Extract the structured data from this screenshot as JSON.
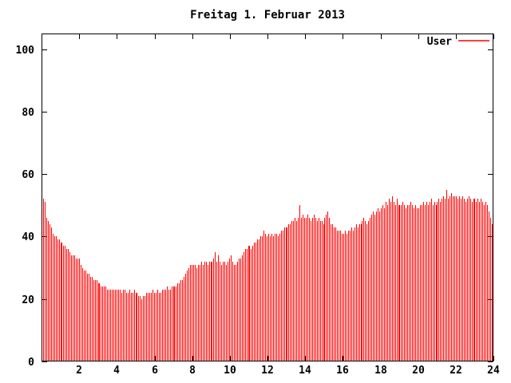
{
  "window": {
    "kind": "gnuplot-chart-image"
  },
  "legend": {
    "position": "top-right"
  },
  "chart_data": {
    "type": "bar",
    "subtype": "impulses",
    "title": "Freitag 1. Februar 2013",
    "xlabel": "",
    "ylabel": "",
    "x_unit": "hour_of_day",
    "sample_interval_minutes": 5,
    "xlim": [
      0,
      24
    ],
    "ylim": [
      0,
      105
    ],
    "xticks": [
      2,
      4,
      6,
      8,
      10,
      12,
      14,
      16,
      18,
      20,
      22,
      24
    ],
    "yticks": [
      0,
      20,
      40,
      60,
      80,
      100
    ],
    "grid": false,
    "legend_position": "top-right",
    "axis_color": "#000000",
    "background_color": "#ffffff",
    "series": [
      {
        "name": "User",
        "color": "#ff0000",
        "values": [
          52,
          51,
          46,
          45,
          44,
          43,
          41,
          40,
          40,
          39,
          39,
          38,
          38,
          37,
          37,
          36,
          36,
          35,
          34,
          34,
          34,
          33,
          33,
          33,
          31,
          30,
          29,
          29,
          28,
          28,
          27,
          27,
          26,
          26,
          26,
          25,
          25,
          24,
          24,
          24,
          24,
          23,
          23,
          23,
          23,
          23,
          23,
          23,
          23,
          23,
          22,
          23,
          23,
          22,
          22,
          23,
          22,
          22,
          23,
          22,
          22,
          21,
          21,
          20,
          21,
          21,
          22,
          22,
          22,
          22,
          23,
          22,
          22,
          23,
          22,
          22,
          23,
          23,
          23,
          24,
          23,
          23,
          24,
          24,
          24,
          24,
          25,
          25,
          26,
          26,
          27,
          28,
          29,
          30,
          31,
          31,
          31,
          31,
          30,
          31,
          31,
          32,
          31,
          32,
          32,
          31,
          32,
          32,
          32,
          33,
          35,
          32,
          34,
          32,
          31,
          32,
          32,
          31,
          32,
          33,
          34,
          32,
          31,
          31,
          32,
          33,
          33,
          34,
          35,
          36,
          36,
          37,
          37,
          36,
          37,
          38,
          38,
          39,
          39,
          40,
          40,
          42,
          41,
          40,
          41,
          40,
          41,
          40,
          41,
          41,
          40,
          41,
          42,
          42,
          43,
          43,
          43,
          44,
          44,
          45,
          45,
          46,
          45,
          46,
          50,
          46,
          47,
          46,
          46,
          47,
          46,
          45,
          46,
          47,
          46,
          45,
          46,
          45,
          45,
          44,
          46,
          47,
          48,
          46,
          44,
          44,
          43,
          43,
          42,
          42,
          42,
          41,
          41,
          42,
          41,
          42,
          42,
          43,
          42,
          43,
          44,
          43,
          44,
          44,
          45,
          46,
          45,
          44,
          45,
          46,
          47,
          48,
          47,
          48,
          49,
          48,
          49,
          50,
          49,
          51,
          50,
          52,
          51,
          53,
          51,
          50,
          52,
          50,
          50,
          50,
          51,
          50,
          49,
          50,
          50,
          51,
          50,
          49,
          50,
          49,
          49,
          50,
          50,
          51,
          50,
          51,
          50,
          51,
          52,
          50,
          51,
          50,
          51,
          52,
          51,
          52,
          53,
          52,
          55,
          52,
          53,
          54,
          53,
          53,
          53,
          52,
          53,
          52,
          53,
          52,
          51,
          52,
          53,
          52,
          51,
          52,
          52,
          51,
          52,
          51,
          52,
          51,
          50,
          51,
          50,
          48,
          46,
          44
        ]
      }
    ]
  }
}
